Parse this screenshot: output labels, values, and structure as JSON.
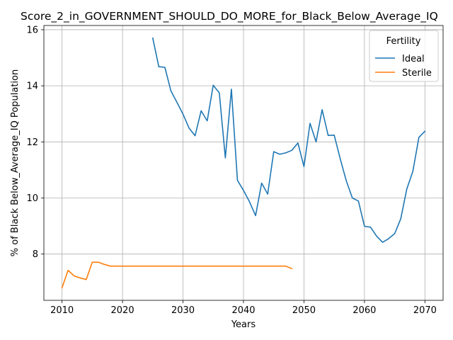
{
  "chart_data": {
    "type": "line",
    "title": "Score_2_in_GOVERNMENT_SHOULD_DO_MORE_for_Black_Below_Average_IQ",
    "xlabel": "Years",
    "ylabel": "% of Black Below_Average_IQ Population",
    "xlim": [
      2007,
      2073
    ],
    "ylim": [
      6.35,
      16.15
    ],
    "xticks": [
      2010,
      2020,
      2030,
      2040,
      2050,
      2060,
      2070
    ],
    "yticks": [
      8,
      10,
      12,
      14,
      16
    ],
    "grid": true,
    "legend": {
      "title": "Fertility",
      "placement": "top-right"
    },
    "series": [
      {
        "name": "Ideal",
        "color": "#1f77b4",
        "x": [
          2025,
          2026,
          2027,
          2028,
          2029,
          2030,
          2031,
          2032,
          2033,
          2034,
          2035,
          2036,
          2037,
          2038,
          2039,
          2040,
          2041,
          2042,
          2043,
          2044,
          2045,
          2046,
          2047,
          2048,
          2049,
          2050,
          2051,
          2052,
          2053,
          2054,
          2055,
          2056,
          2057,
          2058,
          2059,
          2060,
          2061,
          2062,
          2063,
          2064,
          2065,
          2066,
          2067,
          2068,
          2069,
          2070
        ],
        "values": [
          15.7,
          14.68,
          14.66,
          13.82,
          13.41,
          12.99,
          12.49,
          12.22,
          13.11,
          12.75,
          14.02,
          13.75,
          11.43,
          13.88,
          10.63,
          10.27,
          9.86,
          9.37,
          10.53,
          10.14,
          11.65,
          11.56,
          11.61,
          11.7,
          11.96,
          11.12,
          12.66,
          12.0,
          13.15,
          12.23,
          12.24,
          11.39,
          10.61,
          10.0,
          9.89,
          8.99,
          8.96,
          8.64,
          8.42,
          8.55,
          8.73,
          9.26,
          10.32,
          10.95,
          12.16,
          12.38
        ]
      },
      {
        "name": "Sterile",
        "color": "#ff7f0e",
        "x": [
          2010,
          2011,
          2012,
          2013,
          2014,
          2015,
          2016,
          2017,
          2018,
          2019,
          2020,
          2021,
          2022,
          2023,
          2024,
          2025,
          2026,
          2027,
          2028,
          2029,
          2030,
          2031,
          2032,
          2033,
          2034,
          2035,
          2036,
          2037,
          2038,
          2039,
          2040,
          2041,
          2042,
          2043,
          2044,
          2045,
          2046,
          2047,
          2048
        ],
        "values": [
          6.8,
          7.42,
          7.22,
          7.15,
          7.09,
          7.71,
          7.71,
          7.63,
          7.57,
          7.57,
          7.57,
          7.57,
          7.57,
          7.57,
          7.57,
          7.57,
          7.57,
          7.57,
          7.57,
          7.57,
          7.57,
          7.57,
          7.57,
          7.57,
          7.57,
          7.57,
          7.57,
          7.57,
          7.57,
          7.57,
          7.57,
          7.57,
          7.57,
          7.57,
          7.57,
          7.57,
          7.57,
          7.57,
          7.48
        ]
      }
    ]
  }
}
